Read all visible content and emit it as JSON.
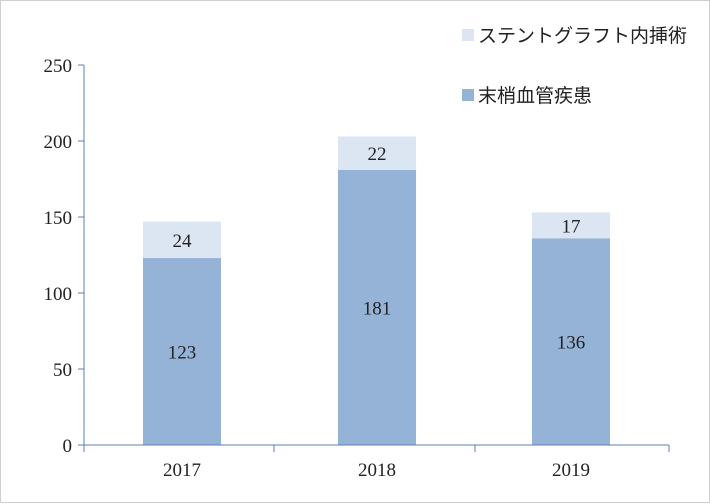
{
  "chart_data": {
    "type": "bar",
    "stacked": true,
    "categories": [
      "2017",
      "2018",
      "2019"
    ],
    "series": [
      {
        "name": "末梢血管疾患",
        "values": [
          123,
          181,
          136
        ],
        "color": "#95b3d7"
      },
      {
        "name": "ステントグラフト内挿術",
        "values": [
          24,
          22,
          17
        ],
        "color": "#dce6f2"
      }
    ],
    "ylim": [
      0,
      250
    ],
    "yticks": [
      0,
      50,
      100,
      150,
      200,
      250
    ],
    "grid": false,
    "legend": "top-right",
    "data_labels": true
  }
}
